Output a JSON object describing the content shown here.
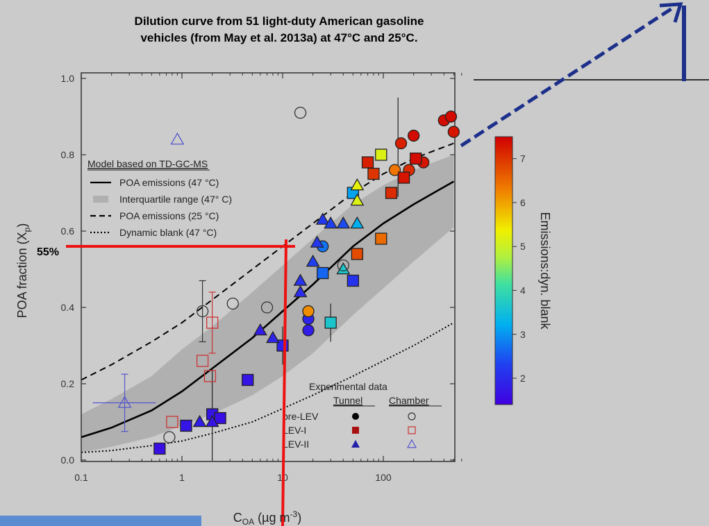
{
  "header": {
    "title_line1": "Dilution curve from 51 light-duty American gasoline",
    "title_line2": "vehicles (from May et al. 2013a) at 47°C and 25°C."
  },
  "overlay": {
    "annotation_55": "55%",
    "red_hline_y": 0.56,
    "red_vline_x": 10
  },
  "chart_data": {
    "type": "scatter",
    "xlabel_main": "C",
    "xlabel_sub": "OA",
    "xlabel_units": " (µg m",
    "xlabel_sup": "-3",
    "xlabel_close": ")",
    "ylabel_main": "POA fraction (X",
    "ylabel_sub": "p",
    "ylabel_close": ")",
    "x_scale": "log",
    "xlim": [
      0.1,
      600
    ],
    "ylim": [
      0,
      1.0
    ],
    "x_ticks": [
      0.1,
      1,
      10,
      100
    ],
    "x_tick_labels": [
      "0.1",
      "1",
      "10",
      "100"
    ],
    "y_ticks": [
      0.0,
      0.2,
      0.4,
      0.6,
      0.8,
      1.0
    ],
    "y_tick_labels": [
      "0.0",
      "0.2",
      "0.4",
      "0.6",
      "0.8",
      "1.0"
    ],
    "colorbar": {
      "label": "Emissions:dyn. blank",
      "range": [
        1.4,
        7.5
      ],
      "ticks": [
        2,
        3,
        4,
        5,
        6,
        7
      ],
      "tick_labels": [
        "2",
        "3",
        "4",
        "5",
        "6",
        "7"
      ]
    },
    "model_legend": {
      "title": "Model based on TD-GC-MS",
      "items": [
        {
          "label": "POA emissions (47 °C)",
          "style": "solid"
        },
        {
          "label": "Interquartile range (47° C)",
          "style": "band"
        },
        {
          "label": "POA emissions (25 °C)",
          "style": "dashed"
        },
        {
          "label": "Dynamic blank (47 °C)",
          "style": "dotted"
        }
      ]
    },
    "exp_legend": {
      "title": "Experimental data",
      "col_tunnel": "Tunnel",
      "col_chamber": "Chamber",
      "rows": [
        {
          "label": "pre-LEV",
          "shape": "circle",
          "chamber_color": "#333333"
        },
        {
          "label": "LEV-I",
          "shape": "square",
          "chamber_color": "#cc3333"
        },
        {
          "label": "LEV-II",
          "shape": "triangle",
          "chamber_color": "#5555cc"
        }
      ]
    },
    "curves": {
      "poa_47C": [
        [
          0.1,
          0.06
        ],
        [
          0.2,
          0.085
        ],
        [
          0.5,
          0.13
        ],
        [
          1,
          0.18
        ],
        [
          2,
          0.24
        ],
        [
          5,
          0.32
        ],
        [
          10,
          0.39
        ],
        [
          20,
          0.46
        ],
        [
          50,
          0.56
        ],
        [
          100,
          0.62
        ],
        [
          200,
          0.67
        ],
        [
          500,
          0.73
        ]
      ],
      "iqr_upper": [
        [
          0.1,
          0.12
        ],
        [
          0.2,
          0.16
        ],
        [
          0.5,
          0.22
        ],
        [
          1,
          0.29
        ],
        [
          2,
          0.35
        ],
        [
          5,
          0.44
        ],
        [
          10,
          0.51
        ],
        [
          20,
          0.58
        ],
        [
          50,
          0.67
        ],
        [
          100,
          0.72
        ],
        [
          200,
          0.76
        ],
        [
          500,
          0.8
        ]
      ],
      "iqr_lower": [
        [
          0.1,
          0.02
        ],
        [
          0.2,
          0.035
        ],
        [
          0.5,
          0.06
        ],
        [
          1,
          0.09
        ],
        [
          2,
          0.12
        ],
        [
          5,
          0.17
        ],
        [
          10,
          0.22
        ],
        [
          20,
          0.28
        ],
        [
          50,
          0.38
        ],
        [
          100,
          0.45
        ],
        [
          200,
          0.52
        ],
        [
          500,
          0.61
        ]
      ],
      "poa_25C": [
        [
          0.1,
          0.21
        ],
        [
          0.2,
          0.25
        ],
        [
          0.5,
          0.31
        ],
        [
          1,
          0.36
        ],
        [
          2,
          0.42
        ],
        [
          5,
          0.5
        ],
        [
          10,
          0.56
        ],
        [
          20,
          0.62
        ],
        [
          50,
          0.7
        ],
        [
          100,
          0.75
        ],
        [
          200,
          0.79
        ],
        [
          500,
          0.83
        ]
      ],
      "dyn_blank": [
        [
          0.1,
          0.02
        ],
        [
          0.2,
          0.025
        ],
        [
          0.5,
          0.038
        ],
        [
          1,
          0.05
        ],
        [
          2,
          0.07
        ],
        [
          5,
          0.1
        ],
        [
          10,
          0.135
        ],
        [
          20,
          0.17
        ],
        [
          50,
          0.22
        ],
        [
          100,
          0.26
        ],
        [
          200,
          0.3
        ],
        [
          500,
          0.36
        ]
      ]
    },
    "tunnel_points": [
      {
        "shape": "circle",
        "x": 25,
        "y": 0.56,
        "c": 2.7
      },
      {
        "shape": "circle",
        "x": 18,
        "y": 0.37,
        "c": 1.9
      },
      {
        "shape": "circle",
        "x": 18,
        "y": 0.34,
        "c": 1.8
      },
      {
        "shape": "circle",
        "x": 18,
        "y": 0.39,
        "c": 6.2
      },
      {
        "shape": "circle",
        "x": 150,
        "y": 0.83,
        "c": 7.2
      },
      {
        "shape": "circle",
        "x": 200,
        "y": 0.85,
        "c": 7.4
      },
      {
        "shape": "circle",
        "x": 250,
        "y": 0.78,
        "c": 7.3
      },
      {
        "shape": "circle",
        "x": 180,
        "y": 0.76,
        "c": 7.1
      },
      {
        "shape": "circle",
        "x": 400,
        "y": 0.89,
        "c": 7.4
      },
      {
        "shape": "circle",
        "x": 470,
        "y": 0.9,
        "c": 7.4
      },
      {
        "shape": "circle",
        "x": 500,
        "y": 0.86,
        "c": 7.3
      },
      {
        "shape": "circle",
        "x": 130,
        "y": 0.76,
        "c": 6.4
      },
      {
        "shape": "square",
        "x": 0.6,
        "y": 0.03,
        "c": 1.6
      },
      {
        "shape": "square",
        "x": 1.1,
        "y": 0.09,
        "c": 1.7
      },
      {
        "shape": "square",
        "x": 2,
        "y": 0.12,
        "c": 1.7
      },
      {
        "shape": "square",
        "x": 2.4,
        "y": 0.11,
        "c": 1.6
      },
      {
        "shape": "square",
        "x": 4.5,
        "y": 0.21,
        "c": 1.7
      },
      {
        "shape": "square",
        "x": 10,
        "y": 0.3,
        "c": 1.9
      },
      {
        "shape": "square",
        "x": 25,
        "y": 0.49,
        "c": 2.6
      },
      {
        "shape": "square",
        "x": 50,
        "y": 0.47,
        "c": 2.1
      },
      {
        "shape": "square",
        "x": 30,
        "y": 0.36,
        "c": 3.6
      },
      {
        "shape": "square",
        "x": 55,
        "y": 0.54,
        "c": 6.8
      },
      {
        "shape": "square",
        "x": 95,
        "y": 0.58,
        "c": 6.5
      },
      {
        "shape": "square",
        "x": 70,
        "y": 0.78,
        "c": 7.2
      },
      {
        "shape": "square",
        "x": 80,
        "y": 0.75,
        "c": 7.0
      },
      {
        "shape": "square",
        "x": 95,
        "y": 0.8,
        "c": 5.2
      },
      {
        "shape": "square",
        "x": 120,
        "y": 0.7,
        "c": 7.1
      },
      {
        "shape": "square",
        "x": 160,
        "y": 0.74,
        "c": 7.3
      },
      {
        "shape": "square",
        "x": 210,
        "y": 0.79,
        "c": 7.4
      },
      {
        "shape": "square",
        "x": 50,
        "y": 0.7,
        "c": 3.1
      },
      {
        "shape": "triangle",
        "x": 1.5,
        "y": 0.1,
        "c": 1.8
      },
      {
        "shape": "triangle",
        "x": 2,
        "y": 0.1,
        "c": 1.7
      },
      {
        "shape": "triangle",
        "x": 6,
        "y": 0.34,
        "c": 1.8
      },
      {
        "shape": "triangle",
        "x": 8,
        "y": 0.32,
        "c": 1.9
      },
      {
        "shape": "triangle",
        "x": 15,
        "y": 0.44,
        "c": 2.0
      },
      {
        "shape": "triangle",
        "x": 15,
        "y": 0.47,
        "c": 2.1
      },
      {
        "shape": "triangle",
        "x": 20,
        "y": 0.52,
        "c": 2.3
      },
      {
        "shape": "triangle",
        "x": 22,
        "y": 0.57,
        "c": 2.2
      },
      {
        "shape": "triangle",
        "x": 25,
        "y": 0.63,
        "c": 2.2
      },
      {
        "shape": "triangle",
        "x": 30,
        "y": 0.62,
        "c": 2.3
      },
      {
        "shape": "triangle",
        "x": 40,
        "y": 0.62,
        "c": 2.4
      },
      {
        "shape": "triangle",
        "x": 55,
        "y": 0.62,
        "c": 3.2
      },
      {
        "shape": "triangle",
        "x": 40,
        "y": 0.5,
        "c": 3.6
      },
      {
        "shape": "triangle",
        "x": 55,
        "y": 0.68,
        "c": 5.2
      },
      {
        "shape": "triangle",
        "x": 55,
        "y": 0.72,
        "c": 5.3
      }
    ],
    "chamber_points": [
      {
        "shape": "circle",
        "x": 0.75,
        "y": 0.06,
        "color": "#333333"
      },
      {
        "shape": "circle",
        "x": 1.6,
        "y": 0.39,
        "color": "#333333",
        "err": 0.08
      },
      {
        "shape": "circle",
        "x": 3.2,
        "y": 0.41,
        "color": "#333333"
      },
      {
        "shape": "circle",
        "x": 7,
        "y": 0.4,
        "color": "#333333"
      },
      {
        "shape": "circle",
        "x": 15,
        "y": 0.91,
        "color": "#333333"
      },
      {
        "shape": "circle",
        "x": 40,
        "y": 0.51,
        "color": "#333333"
      },
      {
        "shape": "square",
        "x": 0.8,
        "y": 0.1,
        "color": "#cc3333"
      },
      {
        "shape": "square",
        "x": 1.6,
        "y": 0.26,
        "color": "#cc3333"
      },
      {
        "shape": "square",
        "x": 2,
        "y": 0.36,
        "color": "#cc3333",
        "err": 0.08
      },
      {
        "shape": "square",
        "x": 1.9,
        "y": 0.22,
        "color": "#cc3333"
      },
      {
        "shape": "triangle",
        "x": 0.27,
        "y": 0.15,
        "color": "#5555cc",
        "err": 0.075,
        "xerr": [
          0.13,
          0.55
        ]
      },
      {
        "shape": "triangle",
        "x": 0.9,
        "y": 0.84,
        "color": "#5555cc"
      }
    ]
  }
}
